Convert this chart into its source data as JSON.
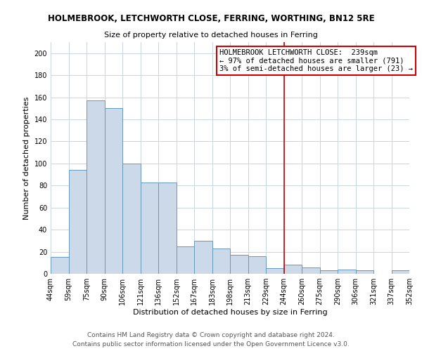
{
  "title": "HOLMEBROOK, LETCHWORTH CLOSE, FERRING, WORTHING, BN12 5RE",
  "subtitle": "Size of property relative to detached houses in Ferring",
  "xlabel": "Distribution of detached houses by size in Ferring",
  "ylabel": "Number of detached properties",
  "categories": [
    "44sqm",
    "59sqm",
    "75sqm",
    "90sqm",
    "106sqm",
    "121sqm",
    "136sqm",
    "152sqm",
    "167sqm",
    "183sqm",
    "198sqm",
    "213sqm",
    "229sqm",
    "244sqm",
    "260sqm",
    "275sqm",
    "290sqm",
    "306sqm",
    "321sqm",
    "337sqm",
    "352sqm"
  ],
  "values": [
    15,
    94,
    157,
    150,
    100,
    83,
    83,
    25,
    30,
    23,
    17,
    16,
    5,
    8,
    6,
    3,
    4,
    3,
    0,
    3
  ],
  "bar_color": "#ccd9e8",
  "bar_edge_color": "#6699bb",
  "vline_color": "#cc0000",
  "vline_pos": 13,
  "ylim": [
    0,
    210
  ],
  "yticks": [
    0,
    20,
    40,
    60,
    80,
    100,
    120,
    140,
    160,
    180,
    200
  ],
  "annotation_title": "HOLMEBROOK LETCHWORTH CLOSE:  239sqm",
  "annotation_line1": "← 97% of detached houses are smaller (791)",
  "annotation_line2": "3% of semi-detached houses are larger (23) →",
  "footer_line1": "Contains HM Land Registry data © Crown copyright and database right 2024.",
  "footer_line2": "Contains public sector information licensed under the Open Government Licence v3.0.",
  "background_color": "#ffffff",
  "grid_color": "#c8d4e0",
  "title_fontsize": 8.5,
  "subtitle_fontsize": 8.0,
  "axis_label_fontsize": 8.0,
  "tick_fontsize": 7.0,
  "annotation_fontsize": 7.5,
  "footer_fontsize": 6.5
}
